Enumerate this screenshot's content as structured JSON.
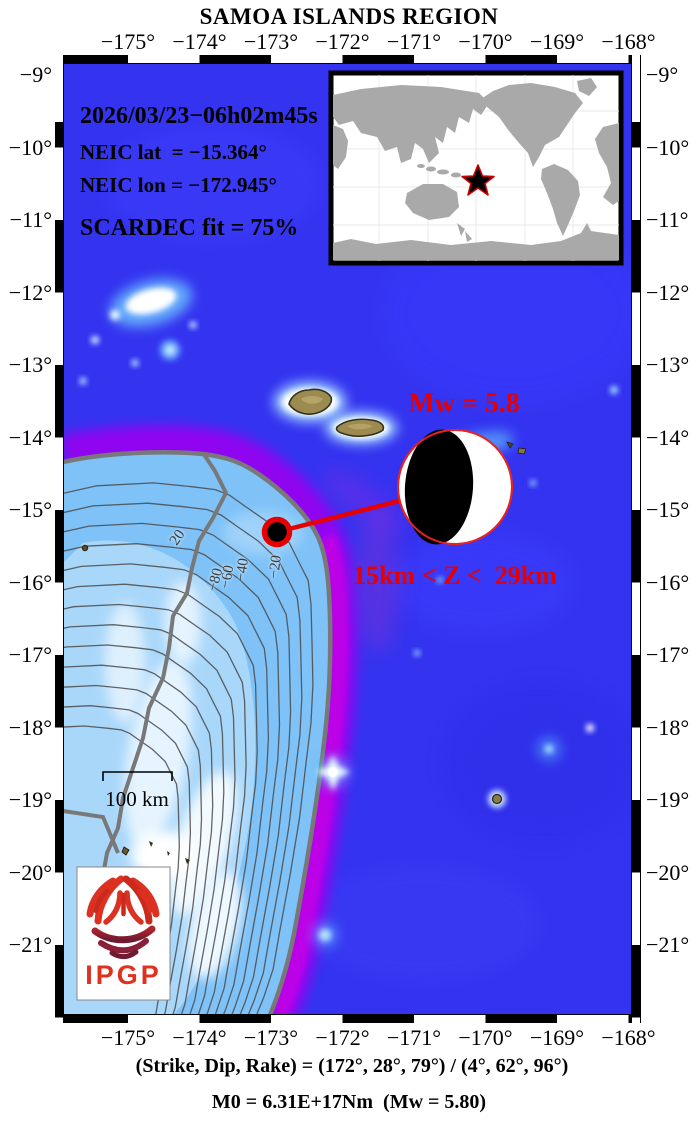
{
  "title": "SAMOA ISLANDS REGION",
  "axes": {
    "lon_labels": [
      "−175°",
      "−174°",
      "−173°",
      "−172°",
      "−171°",
      "−170°",
      "−169°",
      "−168°"
    ],
    "lat_labels": [
      "−9°",
      "−10°",
      "−11°",
      "−12°",
      "−13°",
      "−14°",
      "−15°",
      "−16°",
      "−17°",
      "−18°",
      "−19°",
      "−20°",
      "−21°"
    ]
  },
  "event_info": {
    "origin_time": "2026/03/23−06h02m45s",
    "neic_lat": "NEIC lat  = −15.364°",
    "neic_lon": "NEIC lon = −172.945°",
    "scardec_fit": "SCARDEC fit = 75%"
  },
  "focal_mechanism": {
    "magnitude_label": "Mw = 5.8",
    "depth_label": "15km < Z <  29km"
  },
  "map_annotations": {
    "scale_label": "100 km",
    "contour_labels": [
      "20",
      "−20",
      "−40",
      "−60",
      "−80"
    ]
  },
  "logo": {
    "text": "IPGP"
  },
  "footer": {
    "strike_dip_rake": "(Strike, Dip, Rake) = (172°, 28°, 79°) / (4°, 62°, 96°)",
    "moment": "M0 = 6.31E+17Nm  (Mw = 5.80)"
  },
  "colors": {
    "ocean": "#3434f0",
    "trench_purple": "#a000f5",
    "platform_blue": "#7ec2f8",
    "accent_red": "#e60000",
    "land_tan": "#9c8a50",
    "inset_land_gray": "#a9a9a9"
  }
}
